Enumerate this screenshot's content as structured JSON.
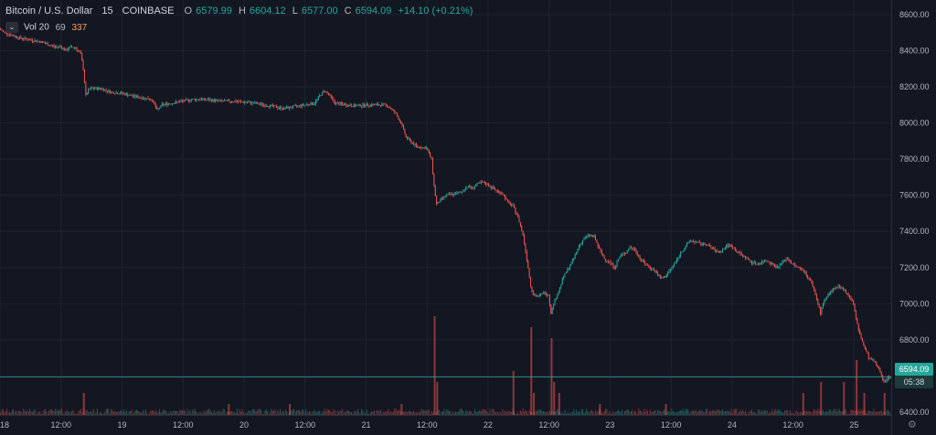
{
  "legend": {
    "symbol": "Bitcoin / U.S. Dollar",
    "interval": "15",
    "exchange": "COINBASE",
    "open_label": "O",
    "open": "6579.99",
    "high_label": "H",
    "high": "6604.12",
    "low_label": "L",
    "low": "6577.00",
    "close_label": "C",
    "close": "6594.09",
    "change": "+14.10 (+0.21%)"
  },
  "volume": {
    "label": "Vol 20",
    "value1": "69",
    "value2": "337",
    "toggle_icon": "chevron-down-icon"
  },
  "price_tag": {
    "price": "6594.09",
    "countdown": "05:38"
  },
  "colors": {
    "background": "#131722",
    "up": "#26a69a",
    "down": "#ef5350",
    "grid": "#1f2330",
    "text": "#b2b5be"
  },
  "settings_icon": "gear-icon",
  "chart_data": {
    "type": "candlestick",
    "y_ticks": [
      "8600.00",
      "8400.00",
      "8200.00",
      "8000.00",
      "7800.00",
      "7600.00",
      "7400.00",
      "7200.00",
      "7000.00",
      "6800.00",
      "6600.00",
      "6400.00"
    ],
    "ylim": [
      6385,
      8680
    ],
    "x_ticks": [
      "18",
      "12:00",
      "19",
      "12:00",
      "20",
      "12:00",
      "21",
      "12:00",
      "22",
      "12:00",
      "23",
      "12:00",
      "24",
      "12:00",
      "25"
    ],
    "x_tick_hours": [
      0,
      12,
      24,
      36,
      48,
      60,
      72,
      84,
      96,
      108,
      120,
      132,
      144,
      156,
      168
    ],
    "xlim_hours": [
      0,
      175.3
    ],
    "grid": true,
    "legend_position": "top-left",
    "price_path": [
      [
        0,
        8520
      ],
      [
        1,
        8500
      ],
      [
        2,
        8490
      ],
      [
        3,
        8480
      ],
      [
        4,
        8470
      ],
      [
        6,
        8460
      ],
      [
        8,
        8450
      ],
      [
        9,
        8440
      ],
      [
        10,
        8430
      ],
      [
        11,
        8420
      ],
      [
        12,
        8425
      ],
      [
        13,
        8400
      ],
      [
        14,
        8420
      ],
      [
        15,
        8415
      ],
      [
        16,
        8380
      ],
      [
        16.5,
        8300
      ],
      [
        17,
        8150
      ],
      [
        17.5,
        8180
      ],
      [
        18,
        8190
      ],
      [
        20,
        8190
      ],
      [
        22,
        8170
      ],
      [
        24,
        8165
      ],
      [
        26,
        8150
      ],
      [
        28,
        8140
      ],
      [
        30,
        8130
      ],
      [
        31,
        8070
      ],
      [
        32,
        8100
      ],
      [
        34,
        8110
      ],
      [
        36,
        8120
      ],
      [
        38,
        8130
      ],
      [
        40,
        8130
      ],
      [
        42,
        8125
      ],
      [
        44,
        8120
      ],
      [
        46,
        8120
      ],
      [
        48,
        8115
      ],
      [
        50,
        8110
      ],
      [
        52,
        8100
      ],
      [
        54,
        8090
      ],
      [
        56,
        8080
      ],
      [
        58,
        8090
      ],
      [
        60,
        8100
      ],
      [
        62,
        8110
      ],
      [
        63,
        8150
      ],
      [
        64,
        8180
      ],
      [
        65,
        8150
      ],
      [
        66,
        8110
      ],
      [
        68,
        8100
      ],
      [
        70,
        8095
      ],
      [
        72,
        8100
      ],
      [
        74,
        8100
      ],
      [
        76,
        8100
      ],
      [
        77,
        8080
      ],
      [
        78,
        8050
      ],
      [
        79,
        8000
      ],
      [
        80,
        7920
      ],
      [
        82,
        7870
      ],
      [
        84,
        7860
      ],
      [
        85,
        7800
      ],
      [
        85.5,
        7650
      ],
      [
        86,
        7550
      ],
      [
        87,
        7580
      ],
      [
        88,
        7600
      ],
      [
        90,
        7610
      ],
      [
        91,
        7620
      ],
      [
        92,
        7650
      ],
      [
        93,
        7640
      ],
      [
        94,
        7660
      ],
      [
        95,
        7670
      ],
      [
        96,
        7660
      ],
      [
        97,
        7640
      ],
      [
        98,
        7620
      ],
      [
        99,
        7610
      ],
      [
        100,
        7560
      ],
      [
        101,
        7540
      ],
      [
        102,
        7480
      ],
      [
        103,
        7380
      ],
      [
        104,
        7200
      ],
      [
        104.5,
        7100
      ],
      [
        105,
        7050
      ],
      [
        106,
        7040
      ],
      [
        107,
        7060
      ],
      [
        108,
        7050
      ],
      [
        108.5,
        6950
      ],
      [
        109,
        7000
      ],
      [
        110,
        7070
      ],
      [
        111,
        7150
      ],
      [
        112,
        7200
      ],
      [
        113,
        7250
      ],
      [
        114,
        7320
      ],
      [
        115,
        7360
      ],
      [
        116,
        7380
      ],
      [
        117,
        7370
      ],
      [
        118,
        7300
      ],
      [
        119,
        7250
      ],
      [
        120,
        7230
      ],
      [
        121,
        7200
      ],
      [
        122,
        7260
      ],
      [
        123,
        7280
      ],
      [
        124,
        7310
      ],
      [
        125,
        7300
      ],
      [
        126,
        7250
      ],
      [
        127,
        7220
      ],
      [
        128,
        7200
      ],
      [
        129,
        7180
      ],
      [
        130,
        7140
      ],
      [
        131,
        7150
      ],
      [
        132,
        7190
      ],
      [
        133,
        7230
      ],
      [
        134,
        7280
      ],
      [
        135,
        7320
      ],
      [
        136,
        7350
      ],
      [
        137,
        7340
      ],
      [
        138,
        7330
      ],
      [
        139,
        7330
      ],
      [
        140,
        7310
      ],
      [
        141,
        7290
      ],
      [
        142,
        7290
      ],
      [
        143,
        7320
      ],
      [
        144,
        7320
      ],
      [
        145,
        7290
      ],
      [
        146,
        7270
      ],
      [
        147,
        7250
      ],
      [
        148,
        7230
      ],
      [
        149,
        7220
      ],
      [
        150,
        7230
      ],
      [
        151,
        7240
      ],
      [
        152,
        7220
      ],
      [
        153,
        7200
      ],
      [
        154,
        7230
      ],
      [
        155,
        7250
      ],
      [
        156,
        7220
      ],
      [
        157,
        7200
      ],
      [
        158,
        7190
      ],
      [
        159,
        7150
      ],
      [
        160,
        7100
      ],
      [
        161,
        7000
      ],
      [
        161.5,
        6950
      ],
      [
        162,
        7000
      ],
      [
        163,
        7050
      ],
      [
        164,
        7080
      ],
      [
        165,
        7090
      ],
      [
        166,
        7080
      ],
      [
        167,
        7050
      ],
      [
        168,
        7000
      ],
      [
        168.5,
        6920
      ],
      [
        169,
        6850
      ],
      [
        170,
        6770
      ],
      [
        171,
        6700
      ],
      [
        172,
        6680
      ],
      [
        173,
        6640
      ],
      [
        174,
        6570
      ],
      [
        175,
        6594
      ]
    ],
    "volume_spikes": [
      [
        16.5,
        2
      ],
      [
        45,
        1
      ],
      [
        57,
        1
      ],
      [
        79,
        1
      ],
      [
        85.5,
        9
      ],
      [
        86,
        3
      ],
      [
        101,
        4
      ],
      [
        104.5,
        8
      ],
      [
        105,
        2
      ],
      [
        108.5,
        7
      ],
      [
        109,
        3
      ],
      [
        110,
        2
      ],
      [
        118,
        1
      ],
      [
        131,
        1
      ],
      [
        158,
        2
      ],
      [
        161.5,
        3
      ],
      [
        166,
        3
      ],
      [
        168.5,
        5
      ],
      [
        170,
        2
      ],
      [
        174,
        2
      ]
    ]
  }
}
